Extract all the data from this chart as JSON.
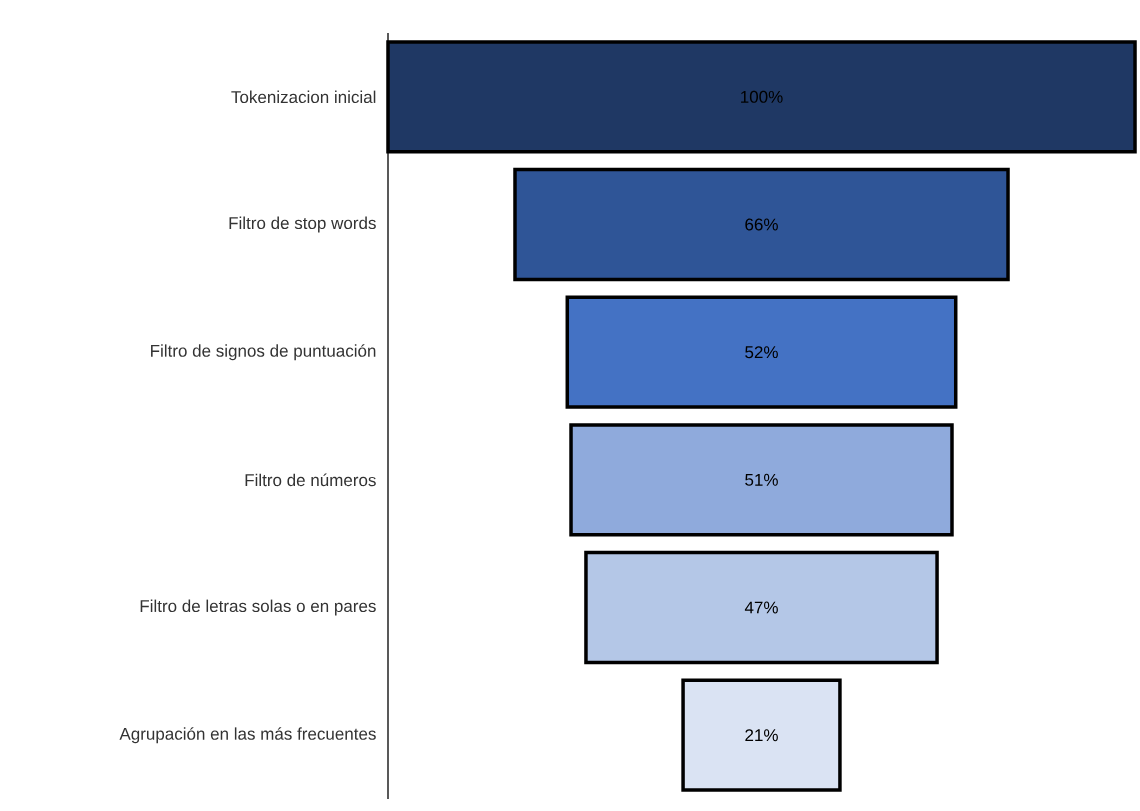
{
  "chart_data": {
    "type": "other",
    "categories": [
      "Tokenizacion inicial",
      "Filtro de stop words",
      "Filtro de signos de puntuación",
      "Filtro de números",
      "Filtro de letras solas o en pares",
      "Agrupación en las más frecuentes"
    ],
    "values": [
      100,
      66,
      52,
      51,
      47,
      21
    ],
    "value_labels": [
      "100%",
      "66%",
      "52%",
      "51%",
      "47%",
      "21%"
    ],
    "colors": [
      "#1f3864",
      "#2f5597",
      "#4472c4",
      "#8faadc",
      "#b4c7e7",
      "#dae3f3"
    ]
  }
}
